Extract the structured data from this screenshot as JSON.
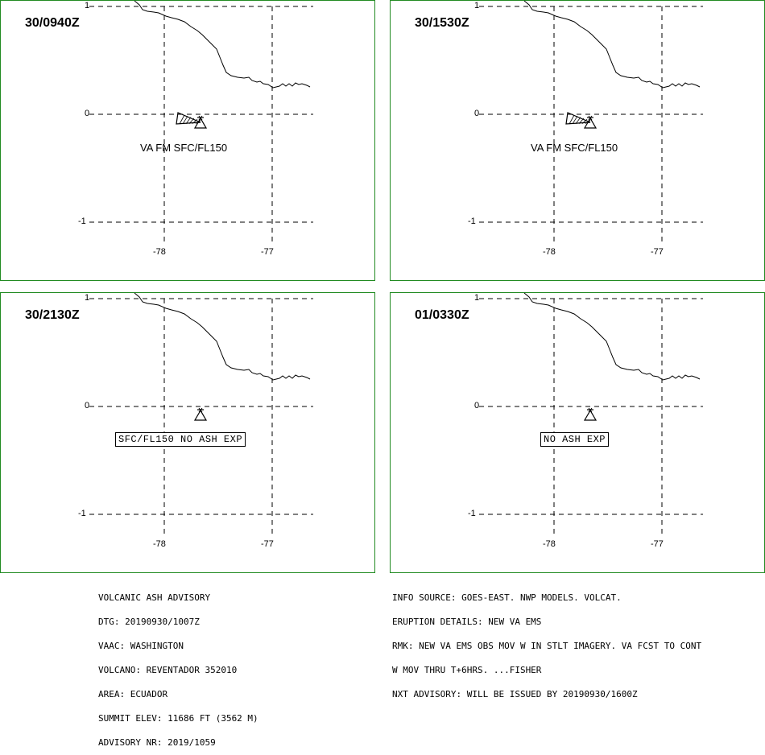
{
  "panels": [
    {
      "time": "30/0940Z",
      "label": "VA FM SFC/FL150",
      "boxed": false,
      "ash": true
    },
    {
      "time": "30/1530Z",
      "label": "VA FM SFC/FL150",
      "boxed": false,
      "ash": true
    },
    {
      "time": "30/2130Z",
      "label": "SFC/FL150 NO ASH EXP",
      "boxed": true,
      "ash": false
    },
    {
      "time": "01/0330Z",
      "label": "NO ASH EXP",
      "boxed": true,
      "ash": false
    }
  ],
  "axis": {
    "lat_ticks": [
      "1",
      "0",
      "-1"
    ],
    "lon_ticks": [
      "-78",
      "-77"
    ]
  },
  "advisory_left": [
    "VOLCANIC ASH ADVISORY",
    "DTG: 20190930/1007Z",
    "VAAC: WASHINGTON",
    "VOLCANO: REVENTADOR 352010",
    "AREA: ECUADOR",
    "SUMMIT ELEV: 11686 FT (3562 M)",
    "ADVISORY NR: 2019/1059"
  ],
  "advisory_right": [
    "INFO SOURCE: GOES-EAST. NWP MODELS. VOLCAT.",
    "ERUPTION DETAILS: NEW VA EMS",
    "RMK: NEW VA EMS OBS MOV W IN STLT IMAGERY. VA FCST TO CONT",
    "W MOV THRU T+6HRS. ...FISHER",
    "NXT ADVISORY: WILL BE ISSUED BY 20190930/1600Z"
  ],
  "colors": {
    "panel_border": "#228b22",
    "lines": "#000000"
  }
}
